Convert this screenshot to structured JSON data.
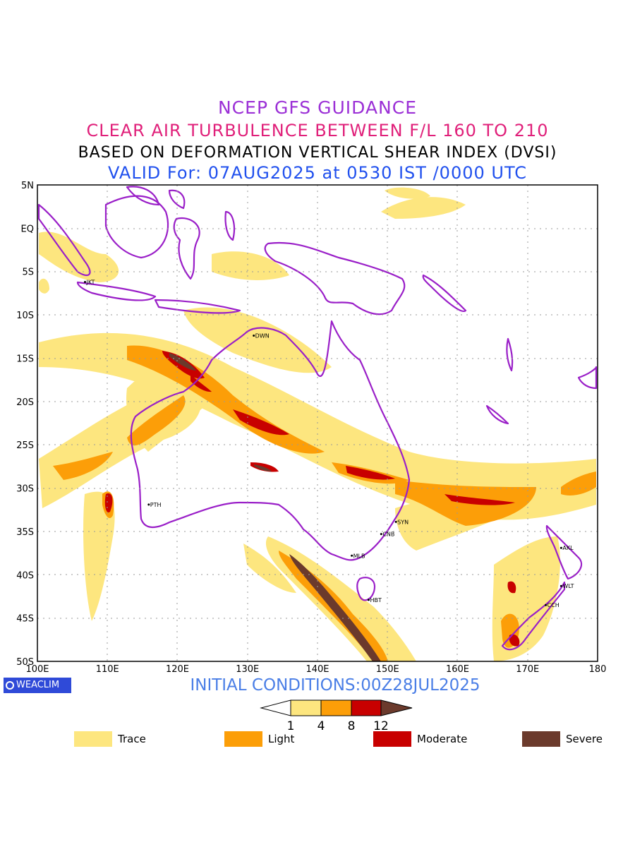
{
  "titles": {
    "line1": "NCEP GFS GUIDANCE",
    "line2": "CLEAR AIR TURBULENCE BETWEEN F/L 160 TO 210",
    "line3": "BASED ON DEFORMATION VERTICAL SHEAR INDEX (DVSI)",
    "line4": "VALID For: 07AUG2025 at 0530 IST /0000 UTC"
  },
  "map": {
    "lon_range": [
      100,
      180
    ],
    "lat_range": [
      -50,
      5
    ],
    "lon_labels": [
      "100E",
      "110E",
      "120E",
      "130E",
      "140E",
      "150E",
      "160E",
      "170E",
      "180"
    ],
    "lat_labels": [
      "5N",
      "EQ",
      "5S",
      "10S",
      "15S",
      "20S",
      "25S",
      "30S",
      "35S",
      "40S",
      "45S",
      "50S"
    ],
    "grid": true,
    "cities": [
      {
        "code": "JKT",
        "lon": 106.8,
        "lat": -6.2
      },
      {
        "code": "DWN",
        "lon": 130.9,
        "lat": -12.4
      },
      {
        "code": "PTH",
        "lon": 115.9,
        "lat": -31.9
      },
      {
        "code": "SYN",
        "lon": 151.2,
        "lat": -33.9
      },
      {
        "code": "CNB",
        "lon": 149.1,
        "lat": -35.3
      },
      {
        "code": "MLB",
        "lon": 144.9,
        "lat": -37.8
      },
      {
        "code": "HBT",
        "lon": 147.3,
        "lat": -42.9
      },
      {
        "code": "AKL",
        "lon": 174.8,
        "lat": -36.9
      },
      {
        "code": "WLT",
        "lon": 174.8,
        "lat": -41.3
      },
      {
        "code": "CCH",
        "lon": 172.6,
        "lat": -43.5
      }
    ]
  },
  "colors": {
    "trace": "#fde67f",
    "light": "#fc9e08",
    "moderate": "#c80000",
    "severe": "#6b3a2c",
    "coast": "#9a1fc8"
  },
  "footer": {
    "logo": "WEACLIM",
    "initial": "INITIAL CONDITIONS:00Z28JUL2025"
  },
  "colorbar": {
    "ticks": [
      "1",
      "4",
      "8",
      "12"
    ]
  },
  "legend": [
    {
      "label": "Trace",
      "color": "#fde67f"
    },
    {
      "label": "Light",
      "color": "#fc9e08"
    },
    {
      "label": "Moderate",
      "color": "#c80000"
    },
    {
      "label": "Severe",
      "color": "#6b3a2c"
    }
  ]
}
